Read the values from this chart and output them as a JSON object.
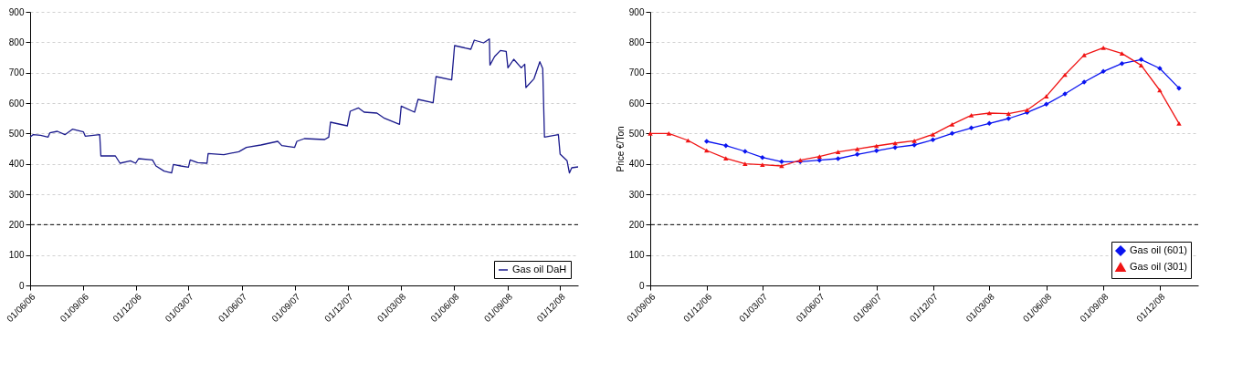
{
  "chart_data": [
    {
      "type": "line",
      "xlim": [
        "2006-06-01",
        "2009-01-01"
      ],
      "ylim": [
        0,
        900
      ],
      "yticks": [
        0,
        100,
        200,
        300,
        400,
        500,
        600,
        700,
        800,
        900
      ],
      "xticks": [
        {
          "value": "2006-06-01",
          "label": "01/06/06"
        },
        {
          "value": "2006-09-01",
          "label": "01/09/06"
        },
        {
          "value": "2006-12-01",
          "label": "01/12/06"
        },
        {
          "value": "2007-03-01",
          "label": "01/03/07"
        },
        {
          "value": "2007-06-01",
          "label": "01/06/07"
        },
        {
          "value": "2007-09-01",
          "label": "01/09/07"
        },
        {
          "value": "2007-12-01",
          "label": "01/12/07"
        },
        {
          "value": "2008-03-01",
          "label": "01/03/08"
        },
        {
          "value": "2008-06-01",
          "label": "01/06/08"
        },
        {
          "value": "2008-09-01",
          "label": "01/09/08"
        },
        {
          "value": "2008-12-01",
          "label": "01/12/08"
        }
      ],
      "grid": "y",
      "legend": "bottom right",
      "marker": "none",
      "line_style": "solid",
      "ref_lines": [
        {
          "axis": "y",
          "value": 200,
          "label": null,
          "color": "#000000",
          "line_style": "dashed"
        }
      ],
      "x": [
        "2006-06-01",
        "2006-06-06",
        "2006-06-19",
        "2006-07-02",
        "2006-07-05",
        "2006-07-18",
        "2006-07-31",
        "2006-08-13",
        "2006-09-01",
        "2006-09-04",
        "2006-09-29",
        "2006-10-01",
        "2006-10-26",
        "2006-11-03",
        "2006-11-21",
        "2006-11-30",
        "2006-12-05",
        "2006-12-29",
        "2007-01-04",
        "2007-01-18",
        "2007-01-31",
        "2007-02-03",
        "2007-02-16",
        "2007-03-01",
        "2007-03-04",
        "2007-03-17",
        "2007-04-02",
        "2007-04-04",
        "2007-05-01",
        "2007-05-27",
        "2007-06-09",
        "2007-07-04",
        "2007-08-02",
        "2007-08-09",
        "2007-08-31",
        "2007-09-04",
        "2007-09-17",
        "2007-10-22",
        "2007-10-29",
        "2007-11-01",
        "2007-11-30",
        "2007-12-05",
        "2007-12-19",
        "2007-12-29",
        "2008-01-20",
        "2008-02-02",
        "2008-02-28",
        "2008-03-02",
        "2008-03-25",
        "2008-03-31",
        "2008-04-26",
        "2008-05-01",
        "2008-05-28",
        "2008-06-02",
        "2008-06-30",
        "2008-07-06",
        "2008-07-22",
        "2008-08-01",
        "2008-08-02",
        "2008-08-10",
        "2008-08-20",
        "2008-08-30",
        "2008-09-02",
        "2008-09-12",
        "2008-09-25",
        "2008-10-01",
        "2008-10-03",
        "2008-10-17",
        "2008-10-27",
        "2008-11-01",
        "2008-11-04",
        "2008-11-28",
        "2008-12-01",
        "2008-12-13",
        "2008-12-17",
        "2008-12-21",
        "2009-01-01"
      ],
      "series": [
        {
          "name": "Gas oil DaH",
          "color": "#1a1a8c",
          "values": [
            488,
            496,
            494,
            488,
            502,
            507,
            496,
            514,
            505,
            491,
            496,
            426,
            426,
            402,
            410,
            402,
            417,
            413,
            393,
            376,
            370,
            398,
            393,
            389,
            413,
            404,
            402,
            434,
            430,
            440,
            454,
            462,
            474,
            460,
            454,
            474,
            483,
            480,
            488,
            537,
            525,
            573,
            584,
            570,
            567,
            550,
            530,
            590,
            570,
            612,
            601,
            687,
            676,
            789,
            777,
            807,
            798,
            811,
            725,
            753,
            773,
            770,
            716,
            744,
            716,
            728,
            651,
            680,
            736,
            713,
            488,
            496,
            432,
            410,
            370,
            387,
            390
          ]
        }
      ]
    },
    {
      "type": "line",
      "ylabel": "Price €/Ton",
      "xlim": [
        "2006-09-01",
        "2009-02-01"
      ],
      "ylim": [
        0,
        900
      ],
      "yticks": [
        0,
        100,
        200,
        300,
        400,
        500,
        600,
        700,
        800,
        900
      ],
      "xticks": [
        {
          "value": "2006-09-01",
          "label": "01/09/06"
        },
        {
          "value": "2006-12-01",
          "label": "01/12/06"
        },
        {
          "value": "2007-03-01",
          "label": "01/03/07"
        },
        {
          "value": "2007-06-01",
          "label": "01/06/07"
        },
        {
          "value": "2007-09-01",
          "label": "01/09/07"
        },
        {
          "value": "2007-12-01",
          "label": "01/12/07"
        },
        {
          "value": "2008-03-01",
          "label": "01/03/08"
        },
        {
          "value": "2008-06-01",
          "label": "01/06/08"
        },
        {
          "value": "2008-09-01",
          "label": "01/09/08"
        },
        {
          "value": "2008-12-01",
          "label": "01/12/08"
        }
      ],
      "grid": "y",
      "legend": "bottom right",
      "line_style": "solid",
      "ref_lines": [
        {
          "axis": "y",
          "value": 200,
          "label": null,
          "color": "#000000",
          "line_style": "dashed"
        }
      ],
      "series": [
        {
          "name": "Gas oil (601)",
          "color": "#0a14f0",
          "marker": "diamond",
          "x": [
            "2006-12-01",
            "2007-01-01",
            "2007-02-01",
            "2007-03-01",
            "2007-04-01",
            "2007-05-01",
            "2007-06-01",
            "2007-07-01",
            "2007-08-01",
            "2007-09-01",
            "2007-10-01",
            "2007-11-01",
            "2007-12-01",
            "2008-01-01",
            "2008-02-01",
            "2008-03-01",
            "2008-04-01",
            "2008-05-01",
            "2008-06-01",
            "2008-07-01",
            "2008-08-01",
            "2008-09-01",
            "2008-10-01",
            "2008-11-01",
            "2008-12-01",
            "2009-01-01"
          ],
          "values": [
            474,
            460,
            441,
            421,
            407,
            407,
            412,
            417,
            431,
            443,
            454,
            462,
            479,
            500,
            518,
            533,
            549,
            569,
            596,
            630,
            669,
            704,
            730,
            743,
            714,
            649
          ]
        },
        {
          "name": "Gas oil (301)",
          "color": "#f01414",
          "marker": "triangle",
          "x": [
            "2006-09-01",
            "2006-10-01",
            "2006-11-01",
            "2006-12-01",
            "2007-01-01",
            "2007-02-01",
            "2007-03-01",
            "2007-04-01",
            "2007-05-01",
            "2007-06-01",
            "2007-07-01",
            "2007-08-01",
            "2007-09-01",
            "2007-10-01",
            "2007-11-01",
            "2007-12-01",
            "2008-01-01",
            "2008-02-01",
            "2008-03-01",
            "2008-04-01",
            "2008-05-01",
            "2008-06-01",
            "2008-07-01",
            "2008-08-01",
            "2008-09-01",
            "2008-10-01",
            "2008-11-01",
            "2008-12-01",
            "2009-01-01"
          ],
          "values": [
            500,
            500,
            477,
            444,
            418,
            400,
            397,
            393,
            412,
            424,
            439,
            449,
            459,
            468,
            476,
            497,
            530,
            560,
            567,
            565,
            577,
            622,
            693,
            758,
            782,
            763,
            724,
            642,
            533
          ]
        }
      ]
    }
  ]
}
